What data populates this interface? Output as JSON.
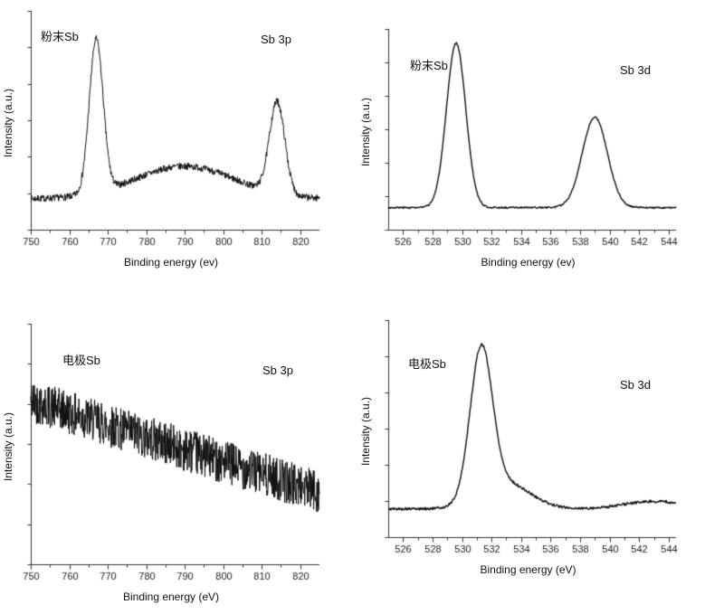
{
  "figure": {
    "background": "#ffffff",
    "line_color": "#111111",
    "axis_color": "#333333"
  },
  "chart_data": [
    {
      "panel": "top-left",
      "type": "line",
      "sample_label": "粉末Sb",
      "region_label": "Sb 3p",
      "xlabel": "Binding energy (ev)",
      "ylabel": "Intensity (a.u.)",
      "x_range": [
        750,
        825
      ],
      "x_ticks": [
        750,
        760,
        770,
        780,
        790,
        800,
        810,
        820
      ],
      "y_tick_count": 6,
      "grid": false,
      "baseline": 0.14,
      "slope": 0,
      "noise": 0.016,
      "seed": 7,
      "points": 800,
      "line_width": 1,
      "peaks": [
        {
          "center": 767,
          "height": 0.7,
          "width": 1.8
        },
        {
          "center": 790,
          "height": 0.15,
          "width": 13
        },
        {
          "center": 814,
          "height": 0.42,
          "width": 2.0
        }
      ]
    },
    {
      "panel": "top-right",
      "type": "line",
      "sample_label": "粉末Sb",
      "region_label": "Sb 3d",
      "xlabel": "Binding energy (ev)",
      "ylabel": "Intensity (a.u.)",
      "x_range": [
        525,
        544.5
      ],
      "x_ticks": [
        526,
        528,
        530,
        532,
        534,
        536,
        538,
        540,
        542,
        544
      ],
      "y_tick_count": 6,
      "grid": false,
      "baseline": 0.11,
      "slope": 0,
      "noise": 0.004,
      "seed": 3,
      "points": 450,
      "line_width": 1.4,
      "peaks": [
        {
          "center": 529.6,
          "height": 0.82,
          "width": 0.65
        },
        {
          "center": 539.0,
          "height": 0.45,
          "width": 0.85
        }
      ]
    },
    {
      "panel": "bottom-left",
      "type": "line",
      "sample_label": "电极Sb",
      "region_label": "Sb 3p",
      "xlabel": "Binding energy (eV)",
      "ylabel": "Intensity (a.u.)",
      "x_range": [
        750,
        825
      ],
      "x_ticks": [
        750,
        760,
        770,
        780,
        790,
        800,
        810,
        820
      ],
      "y_tick_count": 6,
      "grid": false,
      "baseline": 0.68,
      "slope": -0.38,
      "noise": 0.09,
      "seed": 42,
      "points": 900,
      "line_width": 1,
      "peaks": []
    },
    {
      "panel": "bottom-right",
      "type": "line",
      "sample_label": "电极Sb",
      "region_label": "Sb 3d",
      "xlabel": "Binding energy (eV)",
      "ylabel": "Intensity (a.u.)",
      "x_range": [
        525,
        544.5
      ],
      "x_ticks": [
        526,
        528,
        530,
        532,
        534,
        536,
        538,
        540,
        542,
        544
      ],
      "y_tick_count": 6,
      "grid": false,
      "baseline": 0.13,
      "slope": 0,
      "noise": 0.006,
      "seed": 5,
      "points": 450,
      "line_width": 1.4,
      "peaks": [
        {
          "center": 531.3,
          "height": 0.68,
          "width": 0.75
        },
        {
          "center": 532.9,
          "height": 0.12,
          "width": 1.7
        },
        {
          "center": 543.0,
          "height": 0.035,
          "width": 2.0
        }
      ]
    }
  ]
}
